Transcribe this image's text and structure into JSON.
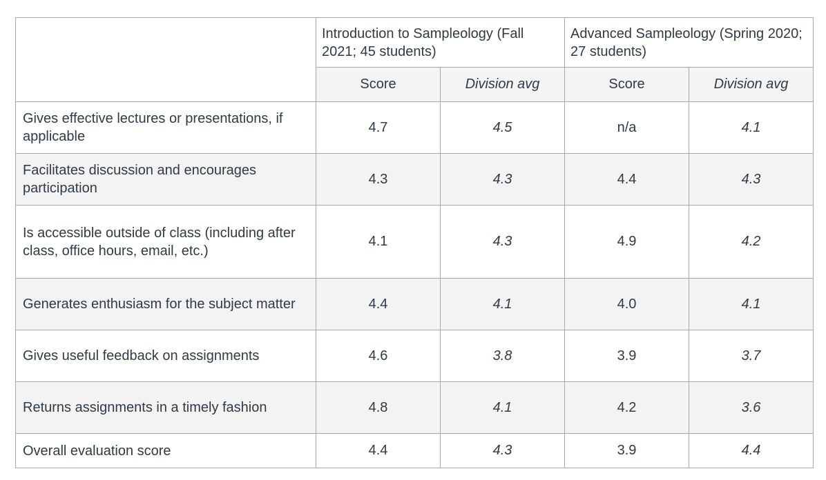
{
  "table": {
    "course_headers": {
      "intro": "Introduction to Sampleology (Fall 2021; 45 students)",
      "advanced": "Advanced Sampleology (Spring 2020; 27 students)"
    },
    "sub_headers": {
      "score": "Score",
      "division_avg": "Division avg"
    },
    "rows": [
      {
        "label": "Gives effective lectures or presentations, if applicable",
        "intro_score": "4.7",
        "intro_division_avg": "4.5",
        "adv_score": "n/a",
        "adv_division_avg": "4.1"
      },
      {
        "label": "Facilitates discussion and encourages participation",
        "intro_score": "4.3",
        "intro_division_avg": "4.3",
        "adv_score": "4.4",
        "adv_division_avg": "4.3"
      },
      {
        "label": "Is accessible outside of class (including after class, office hours, email, etc.)",
        "intro_score": "4.1",
        "intro_division_avg": "4.3",
        "adv_score": "4.9",
        "adv_division_avg": "4.2"
      },
      {
        "label": "Generates enthusiasm for the subject matter",
        "intro_score": "4.4",
        "intro_division_avg": "4.1",
        "adv_score": "4.0",
        "adv_division_avg": "4.1"
      },
      {
        "label": "Gives useful feedback on assignments",
        "intro_score": "4.6",
        "intro_division_avg": "3.8",
        "adv_score": "3.9",
        "adv_division_avg": "3.7"
      },
      {
        "label": "Returns assignments in a timely fashion",
        "intro_score": "4.8",
        "intro_division_avg": "4.1",
        "adv_score": "4.2",
        "adv_division_avg": "3.6"
      },
      {
        "label": "Overall evaluation score",
        "intro_score": "4.4",
        "intro_division_avg": "4.3",
        "adv_score": "3.9",
        "adv_division_avg": "4.4"
      }
    ],
    "colors": {
      "text": "#2e3b47",
      "border": "#a8a8a8",
      "stripe_bg": "#f3f3f4",
      "header_bg": "#f4f4f5"
    }
  }
}
